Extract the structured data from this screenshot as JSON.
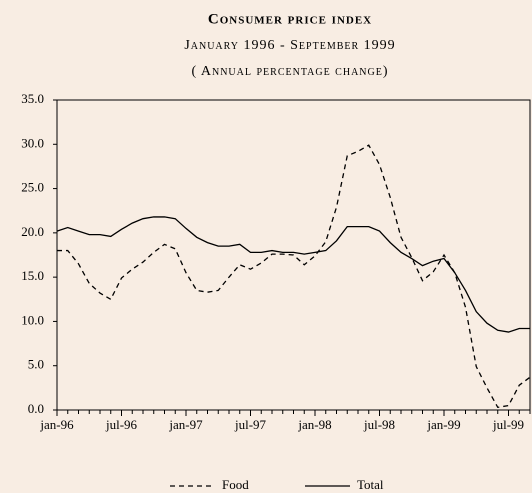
{
  "chart_data": {
    "type": "line",
    "title": "Consumer price index",
    "subtitle": "January 1996 - September 1999",
    "note": "( Annual percentage change)",
    "categories": [
      "jan-96",
      null,
      null,
      null,
      null,
      null,
      "jul-96",
      null,
      null,
      null,
      null,
      null,
      "jan-97",
      null,
      null,
      null,
      null,
      null,
      "jul-97",
      null,
      null,
      null,
      null,
      null,
      "jan-98",
      null,
      null,
      null,
      null,
      null,
      "jul-98",
      null,
      null,
      null,
      null,
      null,
      "jan-99",
      null,
      null,
      null,
      null,
      null,
      "jul-99",
      null,
      null
    ],
    "series": [
      {
        "name": "Food",
        "color": "#000000",
        "dashed": true,
        "values": [
          18.0,
          18.0,
          16.5,
          14.3,
          13.2,
          12.5,
          14.9,
          15.9,
          16.7,
          17.8,
          18.7,
          18.2,
          15.5,
          13.5,
          13.3,
          13.5,
          15.0,
          16.4,
          15.9,
          16.6,
          17.6,
          17.6,
          17.5,
          16.4,
          17.4,
          19.0,
          22.9,
          28.7,
          29.2,
          29.9,
          27.7,
          24.0,
          19.5,
          17.2,
          14.6,
          15.6,
          17.5,
          15.5,
          11.6,
          4.9,
          2.5,
          0.3,
          0.5,
          2.8,
          3.7
        ]
      },
      {
        "name": "Total",
        "color": "#000000",
        "dashed": false,
        "values": [
          20.2,
          20.6,
          20.2,
          19.8,
          19.8,
          19.6,
          20.4,
          21.1,
          21.6,
          21.8,
          21.8,
          21.6,
          20.5,
          19.5,
          18.9,
          18.5,
          18.5,
          18.7,
          17.8,
          17.8,
          18.0,
          17.8,
          17.8,
          17.6,
          17.8,
          18.0,
          19.1,
          20.7,
          20.7,
          20.7,
          20.2,
          18.9,
          17.8,
          17.1,
          16.3,
          16.8,
          17.1,
          15.5,
          13.5,
          11.1,
          9.8,
          9.0,
          8.8,
          9.2,
          9.2
        ]
      }
    ],
    "ylim": [
      0,
      35
    ],
    "yticks": [
      {
        "value": 0,
        "label": "0.0"
      },
      {
        "value": 5,
        "label": "5.0"
      },
      {
        "value": 10,
        "label": "10.0"
      },
      {
        "value": 15,
        "label": "15.0"
      },
      {
        "value": 20,
        "label": "20.0"
      },
      {
        "value": 25,
        "label": "25.0"
      },
      {
        "value": 30,
        "label": "30.0"
      },
      {
        "value": 35,
        "label": "35.0"
      }
    ],
    "grid": false,
    "legend": "bottom"
  }
}
